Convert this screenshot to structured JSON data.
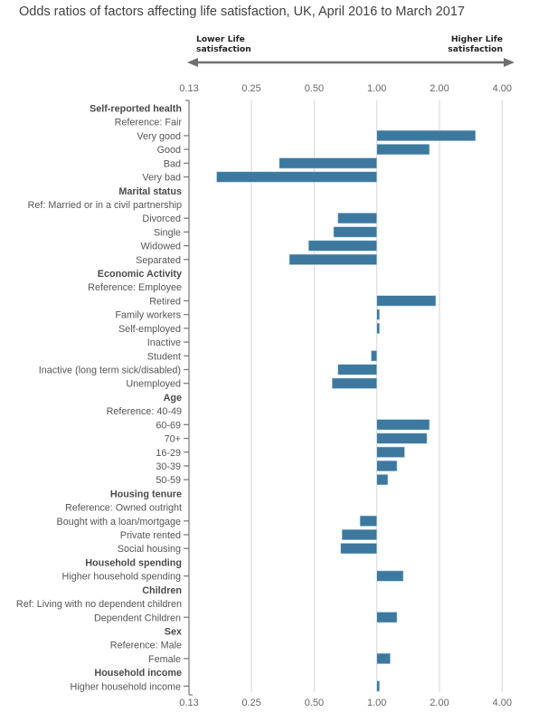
{
  "title": "Odds ratios of factors affecting life satisfaction, UK, April 2016 to March 2017",
  "direction_labels": {
    "lower": [
      "Lower Life",
      "satisfaction"
    ],
    "higher": [
      "Higher Life",
      "satisfaction"
    ]
  },
  "colors": {
    "bar": "#3d789e",
    "grid": "#d6d6d6",
    "axis": "#777777",
    "arrow": "#6e6e6e"
  },
  "chart_data": {
    "type": "bar",
    "orientation": "horizontal",
    "title": "Odds ratios of factors affecting life satisfaction, UK, April 2016 to March 2017",
    "xlabel": "",
    "ylabel": "",
    "x_scale": "log2",
    "baseline": 1.0,
    "xlim": [
      0.13,
      4.0
    ],
    "x_ticks": [
      "0.13",
      "0.25",
      "0.50",
      "1.00",
      "2.00",
      "4.00"
    ],
    "x_tick_values": [
      0.125,
      0.25,
      0.5,
      1.0,
      2.0,
      4.0
    ],
    "grid": true,
    "ticks_top_and_bottom": true,
    "rows": [
      {
        "label": "Self-reported health",
        "kind": "header"
      },
      {
        "label": "Reference: Fair",
        "kind": "reference"
      },
      {
        "label": "Very good",
        "kind": "data",
        "value": 2.98
      },
      {
        "label": "Good",
        "kind": "data",
        "value": 1.79
      },
      {
        "label": "Bad",
        "kind": "data",
        "value": 0.34
      },
      {
        "label": "Very bad",
        "kind": "data",
        "value": 0.17
      },
      {
        "label": "Marital status",
        "kind": "header"
      },
      {
        "label": "Ref: Married or in a civil partnership",
        "kind": "reference"
      },
      {
        "label": "Divorced",
        "kind": "data",
        "value": 0.65
      },
      {
        "label": "Single",
        "kind": "data",
        "value": 0.62
      },
      {
        "label": "Widowed",
        "kind": "data",
        "value": 0.47
      },
      {
        "label": "Separated",
        "kind": "data",
        "value": 0.38
      },
      {
        "label": "Economic Activity",
        "kind": "header"
      },
      {
        "label": "Reference: Employee",
        "kind": "reference"
      },
      {
        "label": "Retired",
        "kind": "data",
        "value": 1.92
      },
      {
        "label": "Family workers",
        "kind": "data",
        "value": 1.03
      },
      {
        "label": "Self-employed",
        "kind": "data",
        "value": 1.03
      },
      {
        "label": "Inactive",
        "kind": "data",
        "value": 1.0
      },
      {
        "label": "Student",
        "kind": "data",
        "value": 0.94
      },
      {
        "label": "Inactive (long term sick/disabled)",
        "kind": "data",
        "value": 0.65
      },
      {
        "label": "Unemployed",
        "kind": "data",
        "value": 0.61
      },
      {
        "label": "Age",
        "kind": "header"
      },
      {
        "label": "Reference: 40-49",
        "kind": "reference"
      },
      {
        "label": "60-69",
        "kind": "data",
        "value": 1.79
      },
      {
        "label": "70+",
        "kind": "data",
        "value": 1.74
      },
      {
        "label": "16-29",
        "kind": "data",
        "value": 1.36
      },
      {
        "label": "30-39",
        "kind": "data",
        "value": 1.25
      },
      {
        "label": "50-59",
        "kind": "data",
        "value": 1.13
      },
      {
        "label": "Housing tenure",
        "kind": "header"
      },
      {
        "label": "Reference: Owned outright",
        "kind": "reference"
      },
      {
        "label": "Bought with a loan/mortgage",
        "kind": "data",
        "value": 0.83
      },
      {
        "label": "Private rented",
        "kind": "data",
        "value": 0.68
      },
      {
        "label": "Social housing",
        "kind": "data",
        "value": 0.67
      },
      {
        "label": "Household spending",
        "kind": "header"
      },
      {
        "label": "Higher household spending",
        "kind": "data",
        "value": 1.34
      },
      {
        "label": "Children",
        "kind": "header"
      },
      {
        "label": "Ref: Living with no dependent children",
        "kind": "reference"
      },
      {
        "label": "Dependent Children",
        "kind": "data",
        "value": 1.25
      },
      {
        "label": "Sex",
        "kind": "header"
      },
      {
        "label": "Reference: Male",
        "kind": "reference"
      },
      {
        "label": "Female",
        "kind": "data",
        "value": 1.16
      },
      {
        "label": "Household income",
        "kind": "header"
      },
      {
        "label": "Higher household income",
        "kind": "data",
        "value": 1.03
      }
    ]
  }
}
